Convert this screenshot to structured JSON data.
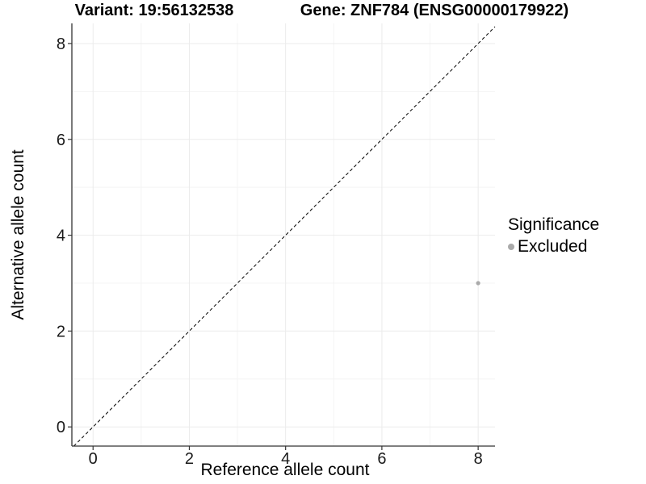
{
  "titles": {
    "variant": "Variant: 19:56132538",
    "gene": "Gene: ZNF784 (ENSG00000179922)"
  },
  "legend": {
    "title": "Significance",
    "items": [
      {
        "label": "Excluded",
        "color": "#aaaaaa"
      }
    ]
  },
  "chart_data": {
    "type": "scatter",
    "title": "Variant: 19:56132538    Gene: ZNF784 (ENSG00000179922)",
    "xlabel": "Reference allele count",
    "ylabel": "Alternative allele count",
    "xlim": [
      -0.44,
      8.35
    ],
    "ylim": [
      -0.4,
      8.42
    ],
    "xticks": [
      0,
      2,
      4,
      6,
      8
    ],
    "yticks": [
      0,
      2,
      4,
      6,
      8
    ],
    "xticks_minor": [
      1,
      3,
      5,
      7
    ],
    "yticks_minor": [
      1,
      3,
      5,
      7
    ],
    "grid": true,
    "legend_position": "right",
    "legend_title": "Significance",
    "series": [
      {
        "name": "Excluded",
        "color": "#aaaaaa",
        "points": [
          {
            "x": 8,
            "y": 3
          }
        ]
      }
    ],
    "identity_line": {
      "slope": 1,
      "intercept": 0,
      "style": "dashed",
      "color": "#000000"
    },
    "colors": {
      "background": "#ffffff",
      "grid_major": "#ebebeb",
      "grid_minor": "#f4f4f4",
      "axis_line": "#333333",
      "tick_text": "#1a1a1a"
    }
  }
}
